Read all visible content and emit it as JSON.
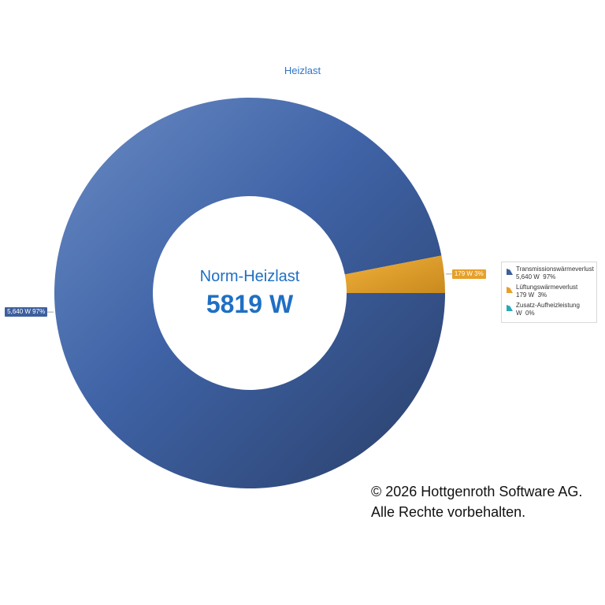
{
  "chart_data": {
    "type": "donut",
    "title": "Heizlast",
    "center_label": "Norm-Heizlast",
    "center_value": "5819 W",
    "series": [
      {
        "name": "Transmissionswärmeverlust",
        "value": 5640,
        "value_label": "5,640 W",
        "percent_label": "97%",
        "data_label": "5,640 W 97%",
        "color": "#3d5f9e"
      },
      {
        "name": "Lüftungswärmeverlust",
        "value": 179,
        "value_label": "179 W",
        "percent_label": "3%",
        "data_label": "179 W 3%",
        "color": "#e6a02a"
      },
      {
        "name": "Zusatz-Aufheizleistung",
        "value": 0,
        "value_label": "W",
        "percent_label": "0%",
        "data_label": "",
        "color": "#2aa8b8"
      }
    ],
    "legend_position": "right"
  },
  "footer": {
    "line1": "© 2026 Hottgenroth Software AG.",
    "line2": "Alle Rechte vorbehalten."
  }
}
